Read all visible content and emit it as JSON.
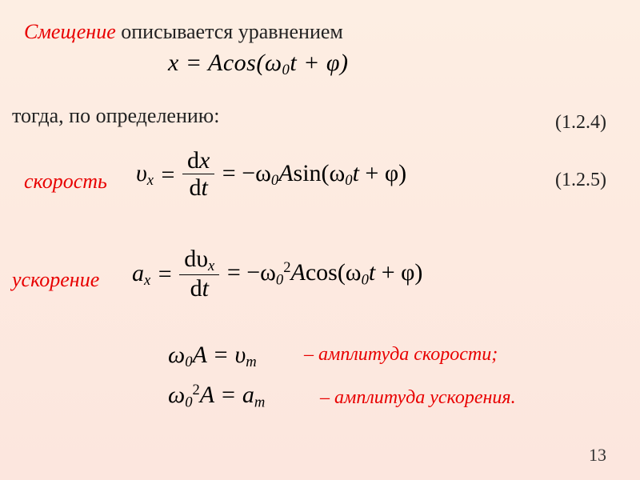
{
  "colors": {
    "background_top": "#fdeee3",
    "background_bottom": "#fce6de",
    "red": "#e80000",
    "black": "#222222",
    "formula": "#000000"
  },
  "title": {
    "emphasis": "Смещение",
    "rest": " описывается уравнением"
  },
  "equation_displacement": "x = Acos(ω₀t + φ)",
  "definition_text": "тогда, по определению:",
  "refs": {
    "first": "(1.2.4)",
    "second": "(1.2.5)"
  },
  "velocity": {
    "label": "скорость",
    "lhs_symbol": "υ",
    "lhs_sub": "x",
    "deriv_num_d": "d",
    "deriv_num_var": "x",
    "deriv_den_d": "d",
    "deriv_den_var": "t",
    "rhs": "= −ω₀Asin(ω₀t + φ)"
  },
  "acceleration": {
    "label": "ускорение",
    "lhs_symbol": "a",
    "lhs_sub": "x",
    "deriv_num_d": "d",
    "deriv_num_var": "υ",
    "deriv_num_varsub": "x",
    "deriv_den_d": "d",
    "deriv_den_var": "t",
    "rhs_pre": "= −ω",
    "rhs_sub": "0",
    "rhs_sup": "2",
    "rhs_post": "Acos(ω₀t + φ)"
  },
  "amp_velocity": {
    "eq_lhs": "ω₀A = υ",
    "eq_sub": "m",
    "label": "– амплитуда скорости;"
  },
  "amp_accel": {
    "eq_pre": "ω",
    "eq_sub0": "0",
    "eq_sup": "2",
    "eq_mid": "A = a",
    "eq_subm": "m",
    "label": "– амплитуда ускорения."
  },
  "page_number": "13",
  "fontsize": {
    "title": 26,
    "equation": 30,
    "body": 26,
    "ref": 24,
    "caption": 24,
    "pagenum": 22
  }
}
